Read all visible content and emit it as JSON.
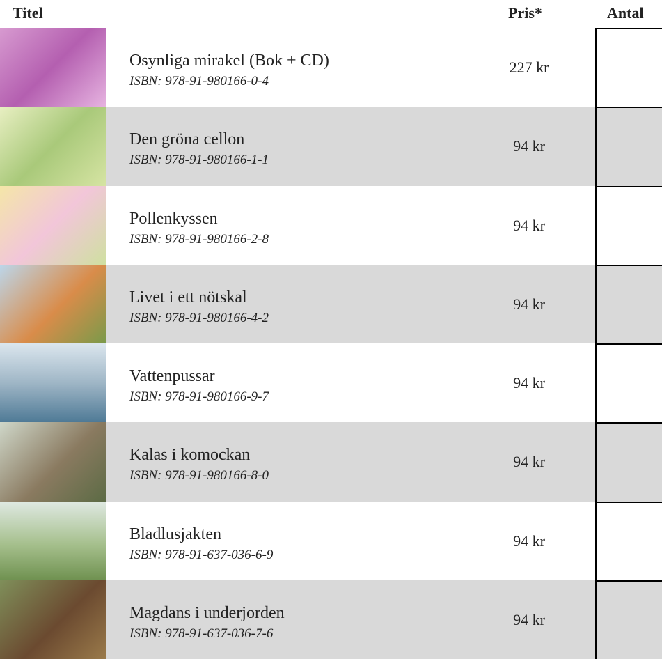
{
  "header": {
    "title": "Titel",
    "price": "Pris*",
    "quantity": "Antal"
  },
  "rows": [
    {
      "title": "Osynliga mirakel (Bok + CD)",
      "isbn": "ISBN: 978-91-980166-0-4",
      "price": "227 kr"
    },
    {
      "title": "Den gröna cellon",
      "isbn": "ISBN: 978-91-980166-1-1",
      "price": "94 kr"
    },
    {
      "title": "Pollenkyssen",
      "isbn": "ISBN: 978-91-980166-2-8",
      "price": "94 kr"
    },
    {
      "title": "Livet i ett nötskal",
      "isbn": "ISBN: 978-91-980166-4-2",
      "price": "94 kr"
    },
    {
      "title": "Vattenpussar",
      "isbn": "ISBN: 978-91-980166-9-7",
      "price": "94 kr"
    },
    {
      "title": "Kalas i komockan",
      "isbn": "ISBN: 978-91-980166-8-0",
      "price": "94 kr"
    },
    {
      "title": "Bladlusjakten",
      "isbn": "ISBN: 978-91-637-036-6-9",
      "price": "94 kr"
    },
    {
      "title": "Magdans i underjorden",
      "isbn": "ISBN: 978-91-637-036-7-6",
      "price": "94 kr"
    }
  ]
}
